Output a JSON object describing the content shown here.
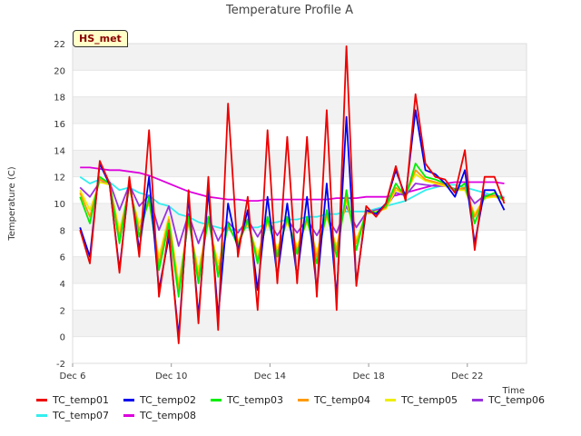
{
  "badge": "HS_met",
  "chart_data": {
    "type": "line",
    "title": "Temperature Profile A",
    "xlabel": "Time",
    "ylabel": "Temperature (C)",
    "xlim": [
      6,
      24.4
    ],
    "ylim": [
      -2,
      22
    ],
    "x_tick_labels": [
      "Dec 6",
      "Dec 10",
      "Dec 14",
      "Dec 18",
      "Dec 22"
    ],
    "x_tick_values": [
      6,
      10,
      14,
      18,
      22
    ],
    "y_ticks": [
      -2,
      0,
      2,
      4,
      6,
      8,
      10,
      12,
      14,
      16,
      18,
      20,
      22
    ],
    "grid": true,
    "legend_position": "bottom",
    "x": [
      6.3,
      6.7,
      7.1,
      7.5,
      7.9,
      8.3,
      8.7,
      9.1,
      9.5,
      9.9,
      10.3,
      10.7,
      11.1,
      11.5,
      11.9,
      12.3,
      12.7,
      13.1,
      13.5,
      13.9,
      14.3,
      14.7,
      15.1,
      15.5,
      15.9,
      16.3,
      16.7,
      17.1,
      17.5,
      17.9,
      18.3,
      18.7,
      19.1,
      19.5,
      19.9,
      20.3,
      20.7,
      21.1,
      21.5,
      21.9,
      22.3,
      22.7,
      23.1,
      23.5
    ],
    "series": [
      {
        "name": "TC_temp01",
        "color": "#ee0000",
        "values": [
          8.0,
          5.5,
          13.2,
          11.5,
          4.8,
          12.0,
          6.0,
          15.5,
          3.0,
          8.0,
          -0.5,
          11.0,
          1.0,
          12.0,
          0.5,
          17.5,
          6.0,
          10.5,
          2.0,
          15.5,
          4.0,
          15.0,
          4.0,
          15.0,
          3.0,
          17.0,
          2.0,
          21.8,
          3.8,
          9.8,
          9.0,
          10.0,
          12.8,
          10.2,
          18.2,
          13.0,
          12.0,
          11.8,
          10.8,
          14.0,
          6.5,
          12.0,
          12.0,
          10.0
        ]
      },
      {
        "name": "TC_temp02",
        "color": "#0000ee",
        "values": [
          8.2,
          6.0,
          13.0,
          11.4,
          5.0,
          11.8,
          6.5,
          12.0,
          3.5,
          7.5,
          0.0,
          10.5,
          1.5,
          11.0,
          1.5,
          10.0,
          6.5,
          9.5,
          3.5,
          10.5,
          4.5,
          10.0,
          4.5,
          10.5,
          3.5,
          11.5,
          3.0,
          16.5,
          4.0,
          9.5,
          9.2,
          10.0,
          12.5,
          10.5,
          17.0,
          12.5,
          12.2,
          11.5,
          10.5,
          12.5,
          7.0,
          11.0,
          11.0,
          9.5
        ]
      },
      {
        "name": "TC_temp03",
        "color": "#00ee00",
        "values": [
          10.5,
          8.5,
          12.0,
          11.5,
          7.0,
          11.5,
          7.5,
          10.5,
          5.0,
          8.5,
          3.0,
          9.0,
          4.0,
          9.0,
          4.5,
          8.5,
          6.8,
          8.8,
          5.5,
          9.0,
          6.0,
          9.0,
          6.2,
          9.0,
          5.5,
          9.5,
          6.0,
          11.0,
          6.5,
          9.5,
          9.3,
          9.8,
          11.5,
          10.5,
          13.0,
          12.0,
          11.8,
          11.5,
          11.0,
          11.5,
          8.5,
          10.5,
          10.8,
          10.2
        ]
      },
      {
        "name": "TC_temp04",
        "color": "#ff9900",
        "values": [
          10.8,
          9.0,
          11.8,
          11.5,
          7.5,
          11.3,
          8.0,
          10.2,
          5.5,
          8.8,
          3.5,
          8.8,
          4.5,
          8.8,
          5.0,
          8.3,
          7.0,
          8.6,
          5.8,
          8.8,
          6.3,
          8.8,
          6.5,
          8.8,
          6.0,
          9.2,
          6.5,
          10.5,
          7.0,
          9.3,
          9.3,
          9.7,
          11.2,
          10.6,
          12.5,
          11.8,
          11.6,
          11.4,
          11.0,
          11.2,
          9.0,
          10.5,
          10.6,
          10.3
        ]
      },
      {
        "name": "TC_temp05",
        "color": "#eeee00",
        "values": [
          11.0,
          9.5,
          11.6,
          11.4,
          8.0,
          11.0,
          8.5,
          10.0,
          6.0,
          9.0,
          4.0,
          8.6,
          5.0,
          8.6,
          5.5,
          8.2,
          7.2,
          8.5,
          6.2,
          8.6,
          6.6,
          8.6,
          6.8,
          8.6,
          6.4,
          9.0,
          6.8,
          10.2,
          7.3,
          9.2,
          9.4,
          9.6,
          11.0,
          10.7,
          12.2,
          11.7,
          11.5,
          11.3,
          11.0,
          11.0,
          9.2,
          10.4,
          10.5,
          10.3
        ]
      },
      {
        "name": "TC_temp06",
        "color": "#9933dd",
        "values": [
          11.2,
          10.5,
          11.6,
          11.6,
          9.5,
          11.4,
          9.8,
          10.6,
          8.0,
          9.8,
          6.8,
          9.2,
          7.0,
          9.0,
          7.2,
          8.6,
          7.8,
          8.8,
          7.5,
          8.8,
          7.6,
          8.8,
          7.8,
          8.8,
          7.6,
          9.0,
          7.8,
          9.8,
          8.2,
          9.3,
          9.5,
          9.7,
          10.8,
          10.6,
          11.5,
          11.4,
          11.3,
          11.3,
          11.1,
          11.1,
          10.0,
          10.6,
          10.6,
          10.4
        ]
      },
      {
        "name": "TC_temp07",
        "color": "#33eeee",
        "values": [
          12.0,
          11.5,
          11.8,
          11.6,
          11.0,
          11.2,
          10.8,
          10.6,
          10.0,
          9.8,
          9.2,
          9.0,
          8.6,
          8.4,
          8.2,
          8.0,
          8.0,
          8.2,
          8.2,
          8.5,
          8.6,
          8.8,
          8.8,
          9.0,
          9.0,
          9.2,
          9.2,
          9.4,
          9.4,
          9.4,
          9.6,
          9.8,
          10.0,
          10.2,
          10.6,
          11.0,
          11.2,
          11.4,
          11.4,
          11.2,
          11.0,
          10.8,
          10.6,
          10.5
        ]
      },
      {
        "name": "TC_temp08",
        "color": "#dd00dd",
        "values": [
          12.7,
          12.7,
          12.6,
          12.5,
          12.5,
          12.4,
          12.3,
          12.1,
          11.8,
          11.5,
          11.2,
          10.9,
          10.7,
          10.5,
          10.4,
          10.3,
          10.3,
          10.2,
          10.2,
          10.3,
          10.3,
          10.3,
          10.3,
          10.3,
          10.3,
          10.3,
          10.4,
          10.4,
          10.4,
          10.5,
          10.5,
          10.5,
          10.6,
          10.8,
          11.0,
          11.2,
          11.4,
          11.5,
          11.6,
          11.6,
          11.6,
          11.6,
          11.6,
          11.5
        ]
      }
    ]
  }
}
